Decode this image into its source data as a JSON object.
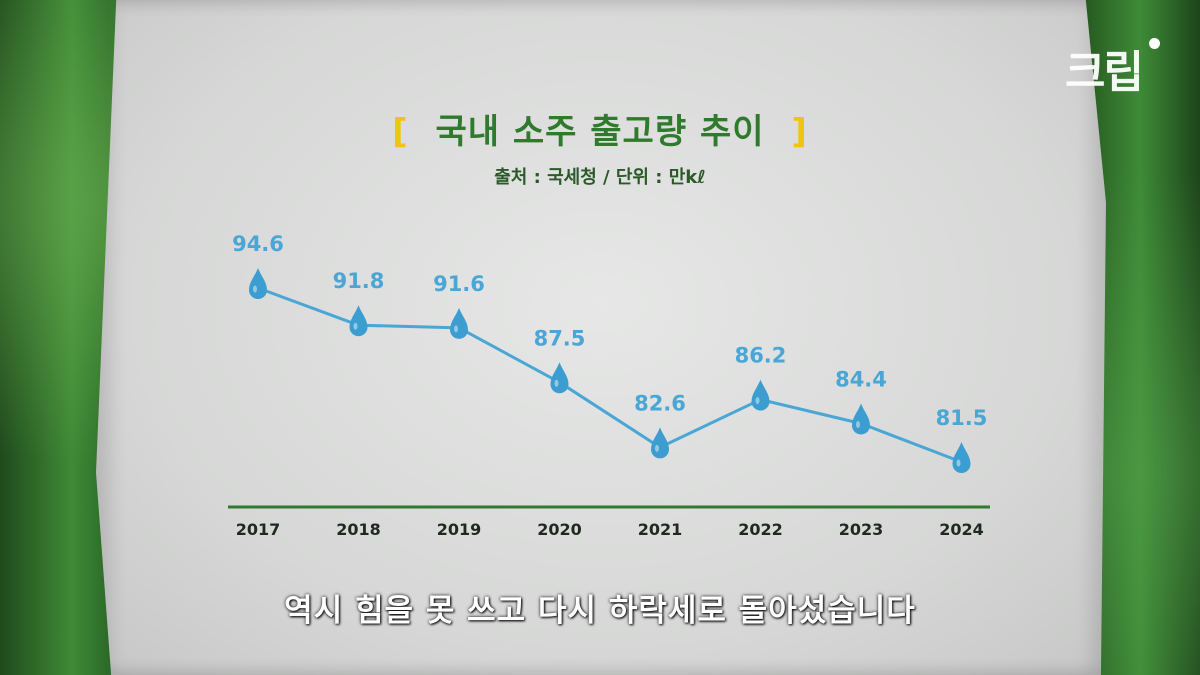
{
  "brand": {
    "logo_text": "크립"
  },
  "chart_data": {
    "type": "line",
    "title_bracket_left": "[",
    "title": "국내 소주 출고량 추이",
    "title_bracket_right": "]",
    "subtitle": "출처 : 국세청 / 단위 : 만kℓ",
    "categories": [
      "2017",
      "2018",
      "2019",
      "2020",
      "2021",
      "2022",
      "2023",
      "2024"
    ],
    "values": [
      94.6,
      91.8,
      91.6,
      87.5,
      82.6,
      86.2,
      84.4,
      81.5
    ],
    "value_labels": [
      "94.6",
      "91.8",
      "91.6",
      "87.5",
      "82.6",
      "86.2",
      "84.4",
      "81.5"
    ],
    "xlabel": "",
    "ylabel": "",
    "grid": false,
    "colors": {
      "line": "#4aa6d4",
      "marker": "#3c9dd0",
      "label": "#4aa6d4",
      "axis": "#2f7a2c"
    }
  },
  "caption": "역시 힘을 못 쓰고 다시 하락세로 돌아섰습니다"
}
